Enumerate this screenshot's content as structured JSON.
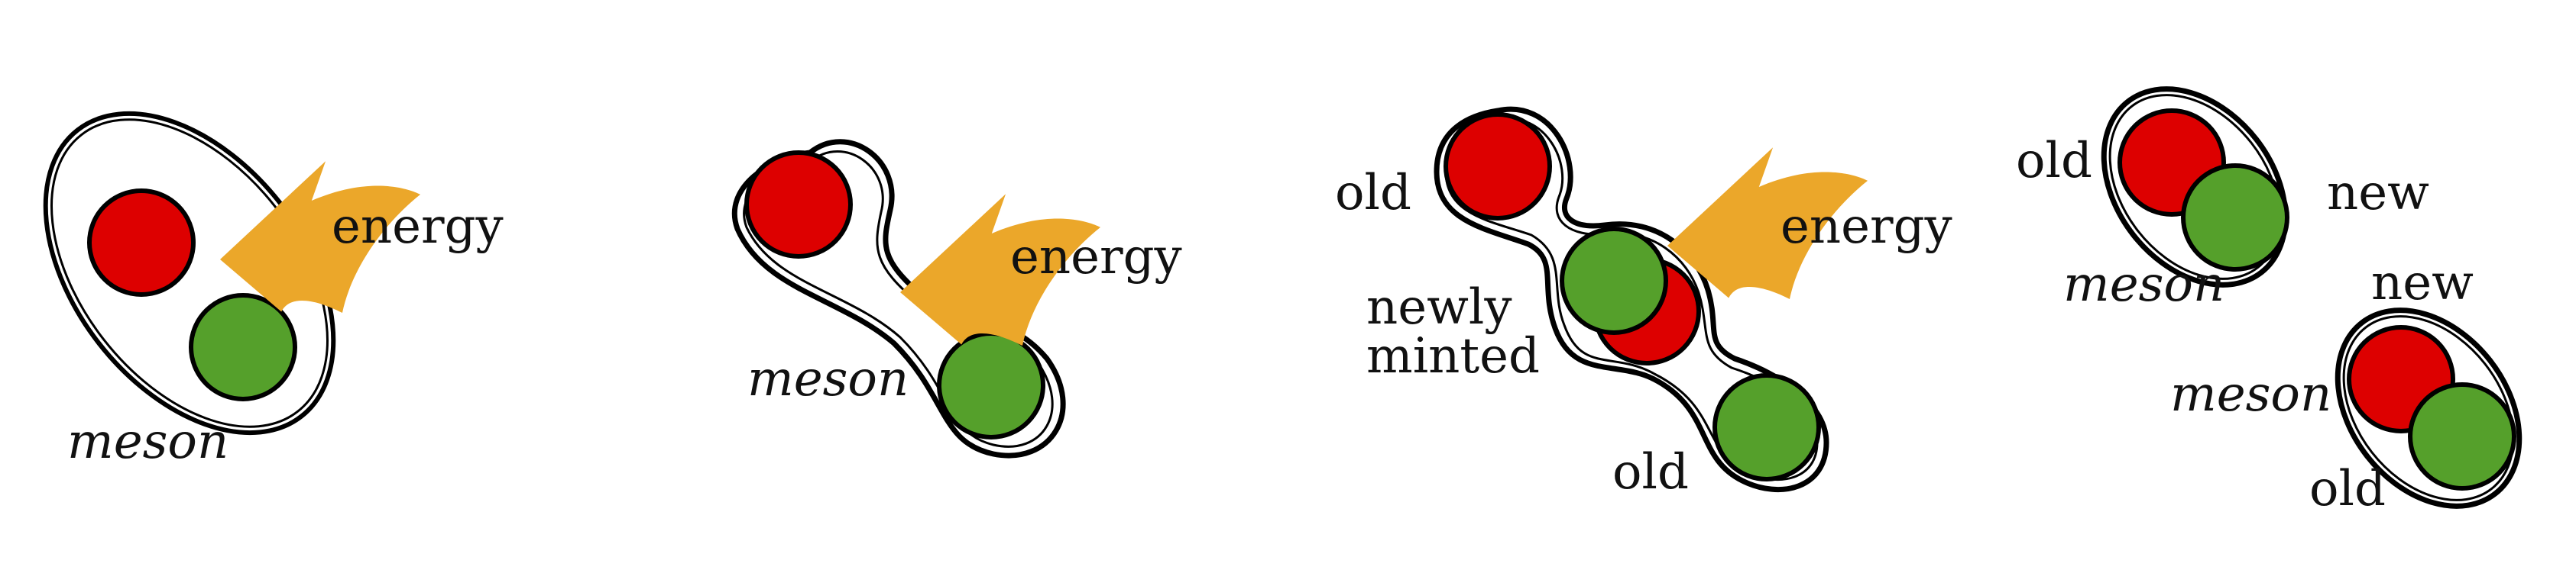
{
  "colors": {
    "red_quark": "#dd0000",
    "green_quark": "#55a02b",
    "energy_arrow": "#eba72a",
    "outline": "#000000",
    "background": "#ffffff"
  },
  "icons": [
    "energy-arrow-icon",
    "red-quark",
    "green-quark"
  ],
  "panels": [
    {
      "id": "panel-1",
      "labels": {
        "energy": "energy",
        "meson": "meson"
      }
    },
    {
      "id": "panel-2",
      "labels": {
        "energy": "energy",
        "meson": "meson"
      }
    },
    {
      "id": "panel-3",
      "labels": {
        "old_top": "old",
        "energy": "energy",
        "newly": "newly",
        "minted": "minted",
        "old_bottom": "old"
      }
    },
    {
      "id": "panel-4",
      "labels": {
        "old_top": "old",
        "new_top": "new",
        "meson_top": "meson",
        "new_bottom": "new",
        "meson_bottom": "meson",
        "old_bottom": "old"
      }
    }
  ]
}
